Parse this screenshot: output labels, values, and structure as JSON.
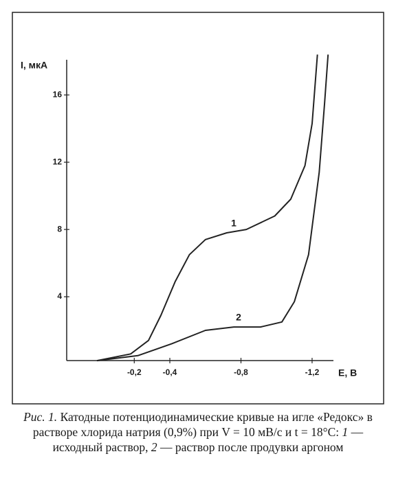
{
  "chart_data": {
    "type": "line",
    "y_label": "I, мкА",
    "x_label": "E, B",
    "xlim": [
      0.18,
      -1.32
    ],
    "ylim": [
      0,
      18.5
    ],
    "xticks": [
      {
        "value": -0.2,
        "label": "-0,2"
      },
      {
        "value": -0.4,
        "label": "-0,4"
      },
      {
        "value": -0.8,
        "label": "-0,8"
      },
      {
        "value": -1.2,
        "label": "-1,2"
      }
    ],
    "yticks": [
      4,
      8,
      12,
      16
    ],
    "series": [
      {
        "name": "1",
        "color": "#222222",
        "x": [
          0.01,
          -0.18,
          -0.28,
          -0.35,
          -0.43,
          -0.51,
          -0.6,
          -0.72,
          -0.83,
          -0.99,
          -1.08,
          -1.16,
          -1.2,
          -1.23
        ],
        "values": [
          0.2,
          0.6,
          1.4,
          2.9,
          4.9,
          6.5,
          7.4,
          7.8,
          8.0,
          8.8,
          9.8,
          11.8,
          14.3,
          18.4
        ]
      },
      {
        "name": "2",
        "color": "#222222",
        "x": [
          0.01,
          -0.22,
          -0.41,
          -0.6,
          -0.76,
          -0.91,
          -1.03,
          -1.1,
          -1.18,
          -1.24,
          -1.27,
          -1.29
        ],
        "values": [
          0.2,
          0.5,
          1.2,
          2.0,
          2.2,
          2.2,
          2.5,
          3.7,
          6.5,
          11.4,
          15.5,
          18.4
        ]
      }
    ],
    "caption": {
      "label": "Рис. 1.",
      "parts": [
        " Катодные потенциодинамические кривые на игле «Редокс» в растворе хлорида натрия (0,9%) при V = 10 мВ/с и t = 18°C: ",
        "1",
        " — исходный раствор, ",
        "2",
        " — раствор после продувки аргоном"
      ]
    }
  }
}
